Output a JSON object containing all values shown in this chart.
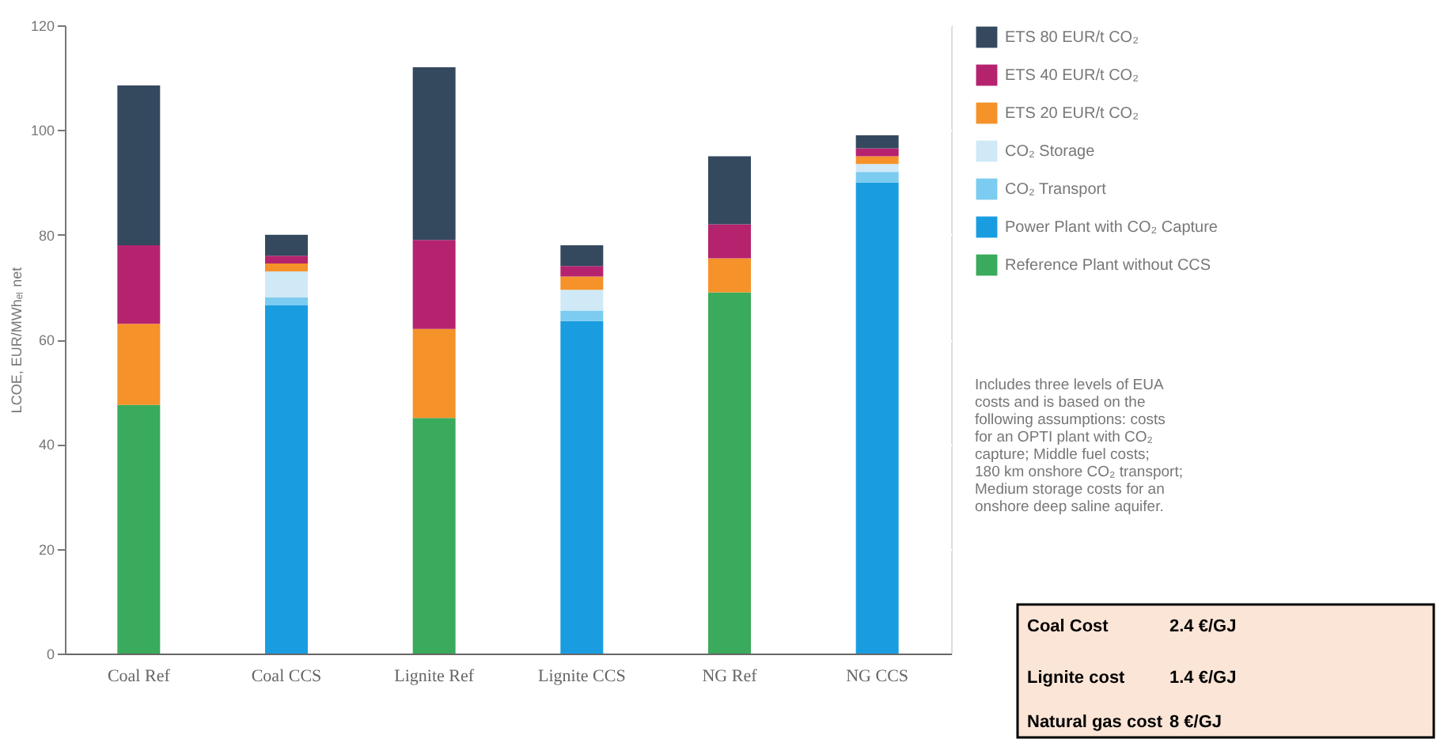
{
  "chart_data": {
    "type": "bar",
    "stacked": true,
    "ylabel": "LCOE, EUR/MWhₑₗ net",
    "categories": [
      "Coal Ref",
      "Coal CCS",
      "Lignite Ref",
      "Lignite CCS",
      "NG Ref",
      "NG CCS"
    ],
    "series": [
      {
        "name": "Reference Plant without CCS",
        "color": "#3aaa5c",
        "values": [
          47.5,
          0,
          45,
          0,
          69,
          0
        ]
      },
      {
        "name": "Power Plant with CO₂ Capture",
        "color": "#1a9de0",
        "values": [
          0,
          66.5,
          0,
          63.5,
          0,
          90
        ]
      },
      {
        "name": "CO₂ Transport",
        "color": "#7ccbf0",
        "values": [
          0,
          1.5,
          0,
          2,
          0,
          2
        ]
      },
      {
        "name": "CO₂ Storage",
        "color": "#cfe9f7",
        "values": [
          0,
          5,
          0,
          4,
          0,
          1.5
        ]
      },
      {
        "name": "ETS 20 EUR/t CO₂",
        "color": "#f5922a",
        "values": [
          15.5,
          1.5,
          17,
          2.5,
          6.5,
          1.5
        ]
      },
      {
        "name": "ETS 40 EUR/t CO₂",
        "color": "#b5236f",
        "values": [
          15,
          1.5,
          17,
          2,
          6.5,
          1.5
        ]
      },
      {
        "name": "ETS 80 EUR/t CO₂",
        "color": "#34495e",
        "values": [
          30.5,
          4,
          33,
          4,
          13,
          2.5
        ]
      }
    ],
    "ylim": [
      0,
      120
    ],
    "yticks": [
      0,
      20,
      40,
      60,
      80,
      100,
      120
    ],
    "grid": "y",
    "legend": "top right",
    "annotations": [
      "Includes three levels of EUA costs and is based on the following assumptions: costs for an OPTI plant with CO₂ capture; Middle fuel costs; 180 km onshore CO₂ transport; Medium storage costs for an onshore deep saline aquifer.",
      "Coal Cost",
      "2.4 €/GJ",
      "Lignite cost",
      "1.4 €/GJ",
      "Natural gas cost",
      "8 €/GJ"
    ]
  }
}
